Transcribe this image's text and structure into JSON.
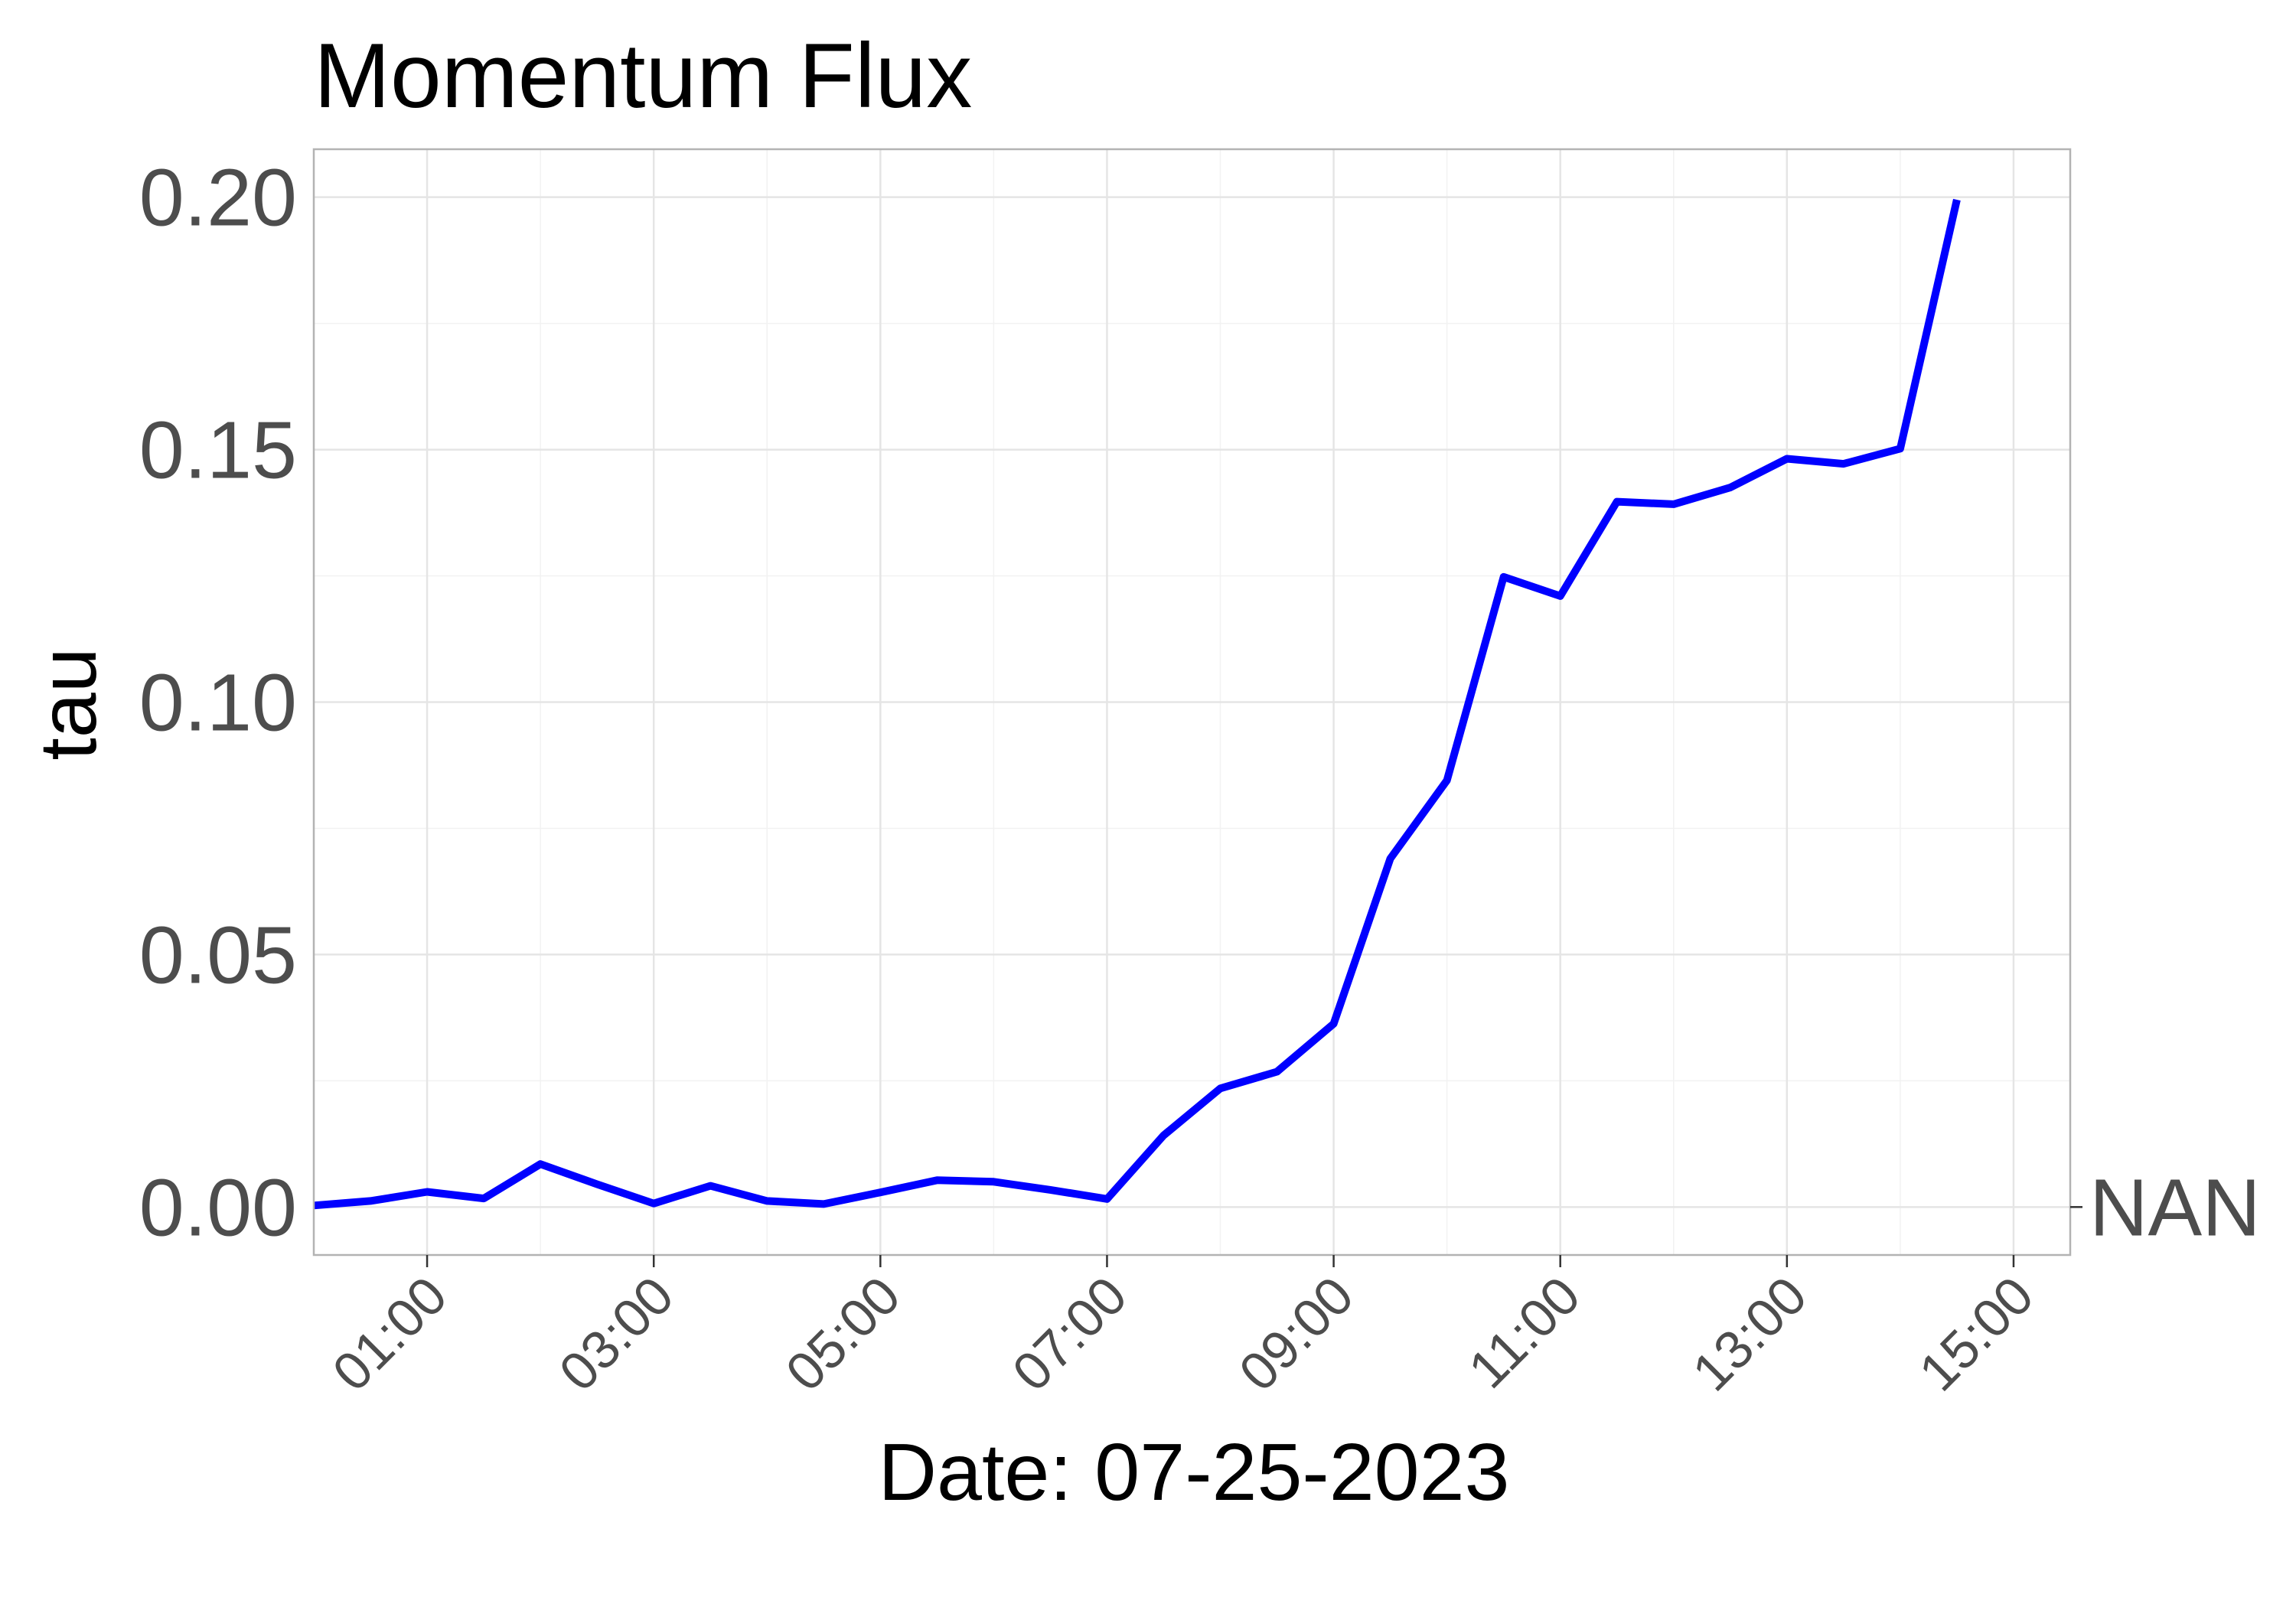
{
  "chart_data": {
    "type": "line",
    "title": "Momentum Flux",
    "xlabel": "Date: 07-25-2023",
    "ylabel": "tau",
    "side_label": "NAN",
    "x_ticks": [
      "01:00",
      "03:00",
      "05:00",
      "07:00",
      "09:00",
      "11:00",
      "13:00",
      "15:00"
    ],
    "y_ticks": [
      "0.00",
      "0.05",
      "0.10",
      "0.15",
      "0.20"
    ],
    "xlim": [
      "00:00",
      "15:30"
    ],
    "ylim": [
      -0.0095,
      0.2095
    ],
    "grid": true,
    "line_color": "#0000ff",
    "series": [
      {
        "x": [
          "00:00",
          "00:30",
          "01:00",
          "01:30",
          "02:00",
          "02:30",
          "03:00",
          "03:30",
          "04:00",
          "04:30",
          "05:00",
          "05:30",
          "06:00",
          "06:30",
          "07:00",
          "07:30",
          "08:00",
          "08:30",
          "09:00",
          "09:30",
          "10:00",
          "10:30",
          "11:00",
          "11:30",
          "12:00",
          "12:30",
          "13:00",
          "13:30",
          "14:00",
          "14:30"
        ],
        "y": [
          0.0003,
          0.0012,
          0.003,
          0.0017,
          0.0085,
          0.0045,
          0.0007,
          0.0042,
          0.0012,
          0.0006,
          0.0029,
          0.0053,
          0.005,
          0.0034,
          0.0016,
          0.0142,
          0.0235,
          0.0268,
          0.0363,
          0.069,
          0.0845,
          0.1248,
          0.121,
          0.1397,
          0.1392,
          0.1425,
          0.1482,
          0.1472,
          0.1502,
          0.1995
        ]
      }
    ]
  }
}
